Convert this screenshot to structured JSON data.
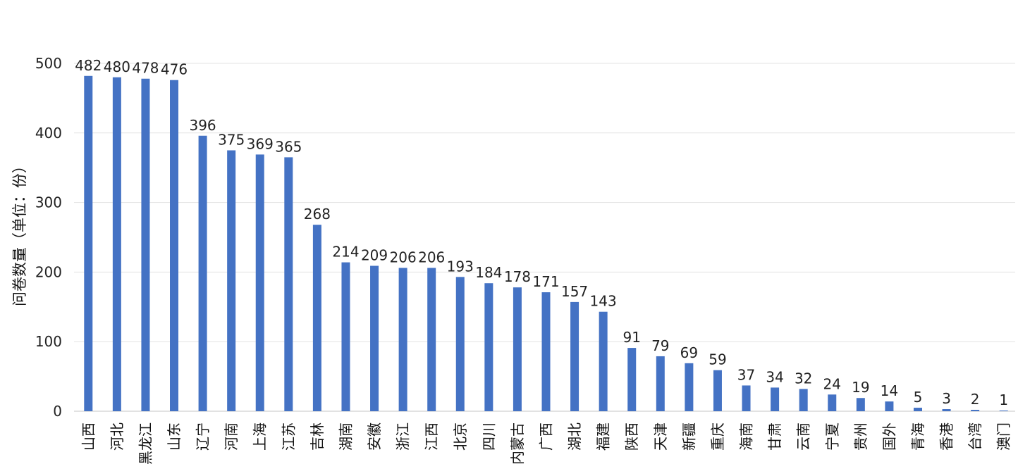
{
  "chart_data": {
    "type": "bar",
    "ylabel": "问卷数量（单位：份）",
    "ylim": [
      0,
      500
    ],
    "yticks": [
      0,
      100,
      200,
      300,
      400,
      500
    ],
    "grid": true,
    "bar_color": "#4472C4",
    "categories": [
      "山西",
      "河北",
      "黑龙江",
      "山东",
      "辽宁",
      "河南",
      "上海",
      "江苏",
      "吉林",
      "湖南",
      "安徽",
      "浙江",
      "江西",
      "北京",
      "四川",
      "内蒙古",
      "广西",
      "湖北",
      "福建",
      "陕西",
      "天津",
      "新疆",
      "重庆",
      "海南",
      "甘肃",
      "云南",
      "宁夏",
      "贵州",
      "国外",
      "青海",
      "香港",
      "台湾",
      "澳门"
    ],
    "values": [
      482,
      480,
      478,
      476,
      396,
      375,
      369,
      365,
      268,
      214,
      209,
      206,
      206,
      193,
      184,
      178,
      171,
      157,
      143,
      91,
      79,
      69,
      59,
      37,
      34,
      32,
      24,
      19,
      14,
      5,
      3,
      2,
      1
    ]
  }
}
